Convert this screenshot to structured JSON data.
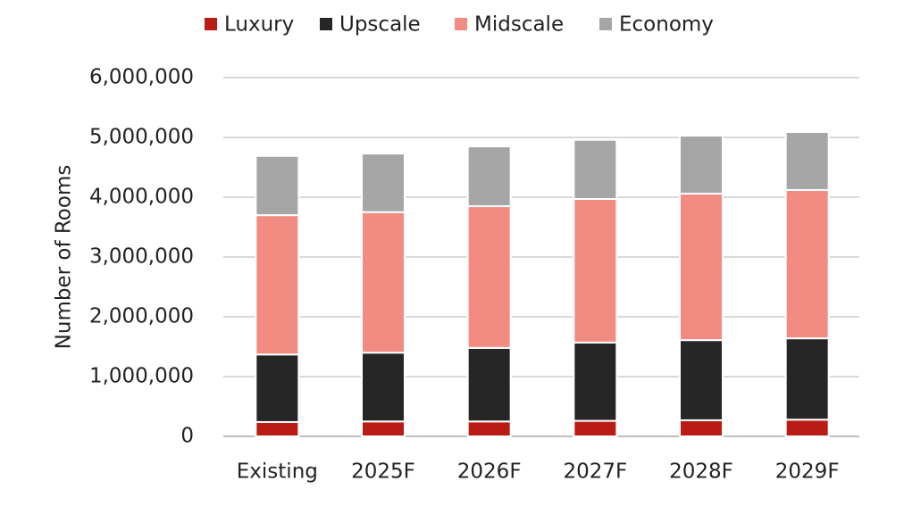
{
  "chart_data": {
    "type": "stacked-bar",
    "y_label": "Number of Rooms",
    "categories": [
      "Existing",
      "2025F",
      "2026F",
      "2027F",
      "2028F",
      "2029F"
    ],
    "series": [
      {
        "name": "Luxury",
        "color": "#b81c14",
        "values": [
          240000,
          250000,
          250000,
          260000,
          270000,
          280000
        ]
      },
      {
        "name": "Upscale",
        "color": "#262626",
        "values": [
          1130000,
          1150000,
          1230000,
          1310000,
          1340000,
          1360000
        ]
      },
      {
        "name": "Midscale",
        "color": "#f28b82",
        "values": [
          2330000,
          2350000,
          2370000,
          2400000,
          2450000,
          2480000
        ]
      },
      {
        "name": "Economy",
        "color": "#a6a6a6",
        "values": [
          990000,
          980000,
          1000000,
          990000,
          970000,
          970000
        ]
      }
    ],
    "ylim": [
      0,
      6000000
    ],
    "yticks": [
      0,
      {
        "value": 1000000,
        "label": "1,000,000"
      },
      {
        "value": 2000000,
        "label": "2,000,000"
      },
      {
        "value": 3000000,
        "label": "3,000,000"
      },
      {
        "value": 4000000,
        "label": "4,000,000"
      },
      {
        "value": 5000000,
        "label": "5,000,000"
      },
      {
        "value": 6000000,
        "label": "6,000,000"
      }
    ],
    "grid": true,
    "legend": "top"
  }
}
